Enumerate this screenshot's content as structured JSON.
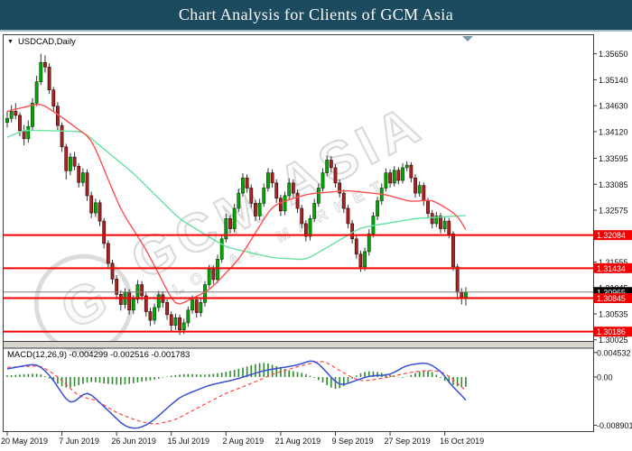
{
  "title_bar": {
    "title": "Chart Analysis for Clients of GCM Asia"
  },
  "chart": {
    "symbol_label": "USDCAD,Daily",
    "dropdown_arrow": "▼",
    "watermark": {
      "logo_letter": "G",
      "line1": "GCM ASIA",
      "line2": "GLOBAL MARKETS"
    }
  },
  "macd_panel": {
    "label": "MACD(12,26,9) -0.004299 -0.002516 -0.001783"
  },
  "chart_data": {
    "type": "candlestick",
    "symbol": "USDCAD",
    "timeframe": "Daily",
    "title": "Chart Analysis for Clients of GCM Asia",
    "grid": false,
    "colors": {
      "titlebar_bg": "#1c4a5e",
      "bull": "#00a800",
      "bull_border": "#043a04",
      "bear": "#aa2222",
      "bear_border": "#2e0404",
      "wick": "#333333",
      "ma_green": "#66e2a2",
      "ma_red": "#ff5050",
      "level_red": "#f40000",
      "current_gray": "#808080",
      "badge_red": "#f00000",
      "badge_black": "#000000",
      "macd_line": "#3a4fd8",
      "macd_signal": "#ff4444",
      "macd_hist": "#2e8b2e",
      "frame": "#3f3f3f",
      "separator": "#d8d5ce",
      "marker": "#7d98a6"
    },
    "y_axis_ticks": [
      "1.35650",
      "1.35140",
      "1.34630",
      "1.34120",
      "1.33595",
      "1.33085",
      "1.32575",
      "1.31555",
      "1.31045",
      "1.30535",
      "1.30025"
    ],
    "x_axis_ticks": [
      {
        "label": "20 May 2019",
        "index": 0
      },
      {
        "label": "7 Jun 2019",
        "index": 13
      },
      {
        "label": "26 Jun 2019",
        "index": 26
      },
      {
        "label": "15 Jul 2019",
        "index": 39
      },
      {
        "label": "2 Aug 2019",
        "index": 52
      },
      {
        "label": "21 Aug 2019",
        "index": 65
      },
      {
        "label": "9 Sep 2019",
        "index": 78
      },
      {
        "label": "27 Sep 2019",
        "index": 91
      },
      {
        "label": "16 Oct 2019",
        "index": 104
      }
    ],
    "price_levels": [
      {
        "price": 1.32084,
        "label": "1.32084"
      },
      {
        "price": 1.31434,
        "label": "1.31434"
      },
      {
        "price": 1.30845,
        "label": "1.30845"
      },
      {
        "price": 1.30186,
        "label": "1.30186"
      }
    ],
    "current_price": {
      "price": 1.30965,
      "label": "1.30965"
    },
    "candles": [
      [
        1.343,
        1.3452,
        1.342,
        1.3438
      ],
      [
        1.3438,
        1.3464,
        1.343,
        1.3452
      ],
      [
        1.3452,
        1.3468,
        1.3436,
        1.3444
      ],
      [
        1.3444,
        1.345,
        1.3403,
        1.3414
      ],
      [
        1.3414,
        1.3425,
        1.3385,
        1.3398
      ],
      [
        1.3398,
        1.3434,
        1.339,
        1.3422
      ],
      [
        1.3422,
        1.3478,
        1.3416,
        1.3468
      ],
      [
        1.3468,
        1.3522,
        1.3462,
        1.351
      ],
      [
        1.351,
        1.3565,
        1.3504,
        1.3548
      ],
      [
        1.3548,
        1.3562,
        1.3528,
        1.3539
      ],
      [
        1.3539,
        1.3546,
        1.3486,
        1.3494
      ],
      [
        1.3494,
        1.35,
        1.3452,
        1.3462
      ],
      [
        1.3462,
        1.347,
        1.3415,
        1.3424
      ],
      [
        1.3424,
        1.343,
        1.3372,
        1.3382
      ],
      [
        1.3382,
        1.3388,
        1.3318,
        1.3335
      ],
      [
        1.3335,
        1.337,
        1.3326,
        1.3362
      ],
      [
        1.3362,
        1.3372,
        1.3336,
        1.3344
      ],
      [
        1.3344,
        1.335,
        1.3302,
        1.3312
      ],
      [
        1.3312,
        1.334,
        1.3304,
        1.3331
      ],
      [
        1.3331,
        1.3338,
        1.3276,
        1.3286
      ],
      [
        1.3286,
        1.3294,
        1.3242,
        1.3252
      ],
      [
        1.3252,
        1.328,
        1.3244,
        1.3272
      ],
      [
        1.3272,
        1.3278,
        1.3226,
        1.3236
      ],
      [
        1.3236,
        1.3242,
        1.3182,
        1.3192
      ],
      [
        1.3192,
        1.3198,
        1.3143,
        1.3153
      ],
      [
        1.3153,
        1.316,
        1.3112,
        1.3122
      ],
      [
        1.3122,
        1.313,
        1.3082,
        1.3092
      ],
      [
        1.3092,
        1.31,
        1.306,
        1.3072
      ],
      [
        1.3072,
        1.3104,
        1.3064,
        1.3096
      ],
      [
        1.3096,
        1.3102,
        1.3052,
        1.3061
      ],
      [
        1.3061,
        1.309,
        1.3053,
        1.3082
      ],
      [
        1.3082,
        1.312,
        1.3074,
        1.3111
      ],
      [
        1.3111,
        1.3118,
        1.308,
        1.3089
      ],
      [
        1.3089,
        1.3095,
        1.3048,
        1.3058
      ],
      [
        1.3058,
        1.3066,
        1.303,
        1.3041
      ],
      [
        1.3041,
        1.3074,
        1.3033,
        1.3066
      ],
      [
        1.3066,
        1.3099,
        1.3058,
        1.3091
      ],
      [
        1.3091,
        1.3098,
        1.3066,
        1.3076
      ],
      [
        1.3076,
        1.3082,
        1.3042,
        1.3052
      ],
      [
        1.3052,
        1.3058,
        1.3019,
        1.3031
      ],
      [
        1.3031,
        1.3054,
        1.3022,
        1.3046
      ],
      [
        1.3046,
        1.3052,
        1.3012,
        1.3022
      ],
      [
        1.3022,
        1.3044,
        1.3014,
        1.3036
      ],
      [
        1.3036,
        1.3068,
        1.3028,
        1.3061
      ],
      [
        1.3061,
        1.309,
        1.3054,
        1.3081
      ],
      [
        1.3081,
        1.3088,
        1.3046,
        1.3056
      ],
      [
        1.3056,
        1.3084,
        1.3048,
        1.3076
      ],
      [
        1.3076,
        1.3118,
        1.3068,
        1.3111
      ],
      [
        1.3111,
        1.315,
        1.3104,
        1.3141
      ],
      [
        1.3141,
        1.3148,
        1.3112,
        1.3121
      ],
      [
        1.3121,
        1.317,
        1.3114,
        1.3161
      ],
      [
        1.3161,
        1.321,
        1.3154,
        1.3201
      ],
      [
        1.3201,
        1.325,
        1.3194,
        1.3241
      ],
      [
        1.3241,
        1.3248,
        1.3212,
        1.3221
      ],
      [
        1.3221,
        1.327,
        1.3214,
        1.3261
      ],
      [
        1.3261,
        1.33,
        1.3254,
        1.3291
      ],
      [
        1.3291,
        1.333,
        1.3284,
        1.3321
      ],
      [
        1.3321,
        1.3328,
        1.3292,
        1.3301
      ],
      [
        1.3301,
        1.3308,
        1.3262,
        1.3271
      ],
      [
        1.3271,
        1.3278,
        1.3236,
        1.3246
      ],
      [
        1.3246,
        1.328,
        1.3238,
        1.3271
      ],
      [
        1.3271,
        1.331,
        1.3264,
        1.3301
      ],
      [
        1.3301,
        1.334,
        1.3294,
        1.3331
      ],
      [
        1.3331,
        1.3338,
        1.3302,
        1.3311
      ],
      [
        1.3311,
        1.3318,
        1.3272,
        1.3281
      ],
      [
        1.3281,
        1.3288,
        1.3246,
        1.3256
      ],
      [
        1.3256,
        1.3294,
        1.3248,
        1.3286
      ],
      [
        1.3286,
        1.332,
        1.3278,
        1.3311
      ],
      [
        1.3311,
        1.3318,
        1.3282,
        1.3291
      ],
      [
        1.3291,
        1.3298,
        1.3252,
        1.3261
      ],
      [
        1.3261,
        1.3268,
        1.3222,
        1.3231
      ],
      [
        1.3231,
        1.3238,
        1.3196,
        1.3206
      ],
      [
        1.3206,
        1.3248,
        1.3198,
        1.3241
      ],
      [
        1.3241,
        1.328,
        1.3234,
        1.3271
      ],
      [
        1.3271,
        1.331,
        1.3264,
        1.3301
      ],
      [
        1.3301,
        1.334,
        1.3294,
        1.3331
      ],
      [
        1.3331,
        1.3365,
        1.3324,
        1.3356
      ],
      [
        1.3356,
        1.3364,
        1.3332,
        1.3341
      ],
      [
        1.3341,
        1.3348,
        1.3302,
        1.3311
      ],
      [
        1.3311,
        1.3318,
        1.3282,
        1.3291
      ],
      [
        1.3291,
        1.3298,
        1.3252,
        1.3261
      ],
      [
        1.3261,
        1.3268,
        1.3222,
        1.3231
      ],
      [
        1.3231,
        1.3238,
        1.3192,
        1.3201
      ],
      [
        1.3201,
        1.3208,
        1.3162,
        1.3171
      ],
      [
        1.3171,
        1.3178,
        1.3136,
        1.3146
      ],
      [
        1.3146,
        1.3184,
        1.3138,
        1.3176
      ],
      [
        1.3176,
        1.322,
        1.3168,
        1.3211
      ],
      [
        1.3211,
        1.3254,
        1.3204,
        1.3246
      ],
      [
        1.3246,
        1.3284,
        1.3238,
        1.3276
      ],
      [
        1.3276,
        1.331,
        1.3268,
        1.3301
      ],
      [
        1.3301,
        1.334,
        1.3294,
        1.3331
      ],
      [
        1.3331,
        1.3338,
        1.3302,
        1.3311
      ],
      [
        1.3311,
        1.3344,
        1.3304,
        1.3336
      ],
      [
        1.3336,
        1.3342,
        1.3308,
        1.3316
      ],
      [
        1.3316,
        1.335,
        1.331,
        1.3341
      ],
      [
        1.3341,
        1.3354,
        1.3334,
        1.3346
      ],
      [
        1.3346,
        1.3352,
        1.3312,
        1.3321
      ],
      [
        1.3321,
        1.3328,
        1.3282,
        1.3291
      ],
      [
        1.3291,
        1.3314,
        1.3284,
        1.3306
      ],
      [
        1.3306,
        1.3312,
        1.3266,
        1.3276
      ],
      [
        1.3276,
        1.3282,
        1.3242,
        1.3251
      ],
      [
        1.3251,
        1.3258,
        1.3222,
        1.3231
      ],
      [
        1.3231,
        1.3254,
        1.3224,
        1.3246
      ],
      [
        1.3246,
        1.3252,
        1.3212,
        1.3221
      ],
      [
        1.3221,
        1.3244,
        1.3214,
        1.3236
      ],
      [
        1.3236,
        1.3242,
        1.3202,
        1.3211
      ],
      [
        1.3211,
        1.3216,
        1.3138,
        1.3146
      ],
      [
        1.3146,
        1.3152,
        1.3082,
        1.3096
      ],
      [
        1.3096,
        1.3104,
        1.3072,
        1.3086
      ],
      [
        1.3086,
        1.3106,
        1.307,
        1.3096
      ]
    ],
    "ma_green_anchors": [
      [
        0,
        1.3401
      ],
      [
        4,
        1.3415
      ],
      [
        18,
        1.3412
      ],
      [
        30,
        1.333
      ],
      [
        41,
        1.324
      ],
      [
        52,
        1.3185
      ],
      [
        63,
        1.3164
      ],
      [
        71,
        1.316
      ],
      [
        84,
        1.3223
      ],
      [
        97,
        1.3241
      ],
      [
        109,
        1.3247
      ]
    ],
    "ma_red_anchors": [
      [
        0,
        1.3452
      ],
      [
        8,
        1.3468
      ],
      [
        13,
        1.344
      ],
      [
        20,
        1.3398
      ],
      [
        27,
        1.3258
      ],
      [
        33,
        1.318
      ],
      [
        40,
        1.3068
      ],
      [
        48,
        1.31
      ],
      [
        55,
        1.316
      ],
      [
        63,
        1.3266
      ],
      [
        68,
        1.3281
      ],
      [
        72,
        1.329
      ],
      [
        81,
        1.3296
      ],
      [
        90,
        1.3288
      ],
      [
        96,
        1.3274
      ],
      [
        101,
        1.3278
      ],
      [
        107,
        1.3248
      ],
      [
        109,
        1.3219
      ]
    ],
    "macd": {
      "axis_ticks": [
        {
          "label": "0.004532",
          "value": 0.004532
        },
        {
          "label": "0.00",
          "value": 0.0
        },
        {
          "label": "-0.008901",
          "value": -0.008901
        }
      ],
      "line_anchors": [
        [
          0,
          0.0015
        ],
        [
          7,
          0.0025
        ],
        [
          10,
          0.0005
        ],
        [
          15,
          -0.0053
        ],
        [
          19,
          -0.0025
        ],
        [
          24,
          -0.0062
        ],
        [
          28,
          -0.0092
        ],
        [
          31,
          -0.0096
        ],
        [
          34,
          -0.0085
        ],
        [
          41,
          -0.0037
        ],
        [
          48,
          -0.0015
        ],
        [
          54,
          -0.0005
        ],
        [
          61,
          0.0012
        ],
        [
          69,
          0.0022
        ],
        [
          73,
          0.0033
        ],
        [
          79,
          -0.0017
        ],
        [
          86,
          0.0002
        ],
        [
          91,
          0.0004
        ],
        [
          95,
          0.0022
        ],
        [
          100,
          0.0027
        ],
        [
          104,
          0.0005
        ],
        [
          105,
          -0.0012
        ],
        [
          108,
          -0.0033
        ],
        [
          109,
          -0.0043
        ]
      ],
      "signal_anchors": [
        [
          0,
          0.0018
        ],
        [
          8,
          0.0021
        ],
        [
          12,
          0.0001
        ],
        [
          17,
          -0.0036
        ],
        [
          21,
          -0.0042
        ],
        [
          26,
          -0.0066
        ],
        [
          31,
          -0.0081
        ],
        [
          35,
          -0.0088
        ],
        [
          40,
          -0.0079
        ],
        [
          46,
          -0.0054
        ],
        [
          52,
          -0.003
        ],
        [
          58,
          -0.0012
        ],
        [
          64,
          0.0008
        ],
        [
          70,
          0.0021
        ],
        [
          75,
          0.0031
        ],
        [
          81,
          0.0003
        ],
        [
          84,
          -0.0008
        ],
        [
          88,
          -0.0004
        ],
        [
          92,
          0.0002
        ],
        [
          96,
          0.0009
        ],
        [
          101,
          0.0013
        ],
        [
          104,
          0.0008
        ],
        [
          106,
          -0.0005
        ],
        [
          109,
          -0.0025
        ]
      ],
      "histogram_anchors": [
        [
          0,
          0.0003
        ],
        [
          4,
          0.0005
        ],
        [
          7,
          0.0007
        ],
        [
          9,
          0.0003
        ],
        [
          11,
          -0.0008
        ],
        [
          14,
          -0.0022
        ],
        [
          17,
          -0.0015
        ],
        [
          20,
          -0.0008
        ],
        [
          23,
          -0.0012
        ],
        [
          27,
          -0.0015
        ],
        [
          31,
          -0.001
        ],
        [
          35,
          -0.0005
        ],
        [
          39,
          0.0003
        ],
        [
          43,
          0.0006
        ],
        [
          47,
          0.0004
        ],
        [
          51,
          0.0008
        ],
        [
          55,
          0.0015
        ],
        [
          58,
          0.0022
        ],
        [
          61,
          0.0028
        ],
        [
          64,
          0.002
        ],
        [
          67,
          0.0012
        ],
        [
          70,
          0.0008
        ],
        [
          72,
          0.0003
        ],
        [
          75,
          -0.001
        ],
        [
          78,
          -0.0025
        ],
        [
          80,
          -0.0018
        ],
        [
          83,
          0.0005
        ],
        [
          86,
          0.0012
        ],
        [
          89,
          0.0008
        ],
        [
          92,
          0.0002
        ],
        [
          94,
          -0.0004
        ],
        [
          97,
          0.0008
        ],
        [
          100,
          0.0014
        ],
        [
          102,
          0.0005
        ],
        [
          104,
          -0.0008
        ],
        [
          106,
          -0.0015
        ],
        [
          108,
          -0.002
        ],
        [
          109,
          -0.0018
        ]
      ]
    }
  }
}
